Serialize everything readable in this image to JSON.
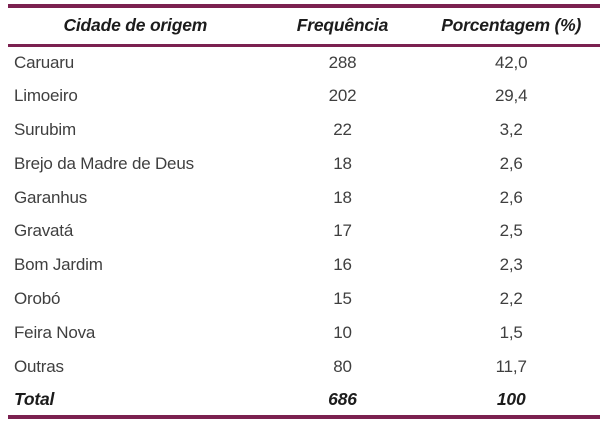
{
  "table": {
    "columns": [
      "Cidade de origem",
      "Frequência",
      "Porcentagem (%)"
    ],
    "rows": [
      [
        "Caruaru",
        "288",
        "42,0"
      ],
      [
        "Limoeiro",
        "202",
        "29,4"
      ],
      [
        "Surubim",
        "22",
        "3,2"
      ],
      [
        "Brejo da Madre de Deus",
        "18",
        "2,6"
      ],
      [
        "Garanhus",
        "18",
        "2,6"
      ],
      [
        "Gravatá",
        "17",
        "2,5"
      ],
      [
        "Bom Jardim",
        "16",
        "2,3"
      ],
      [
        "Orobó",
        "15",
        "2,2"
      ],
      [
        "Feira Nova",
        "10",
        "1,5"
      ],
      [
        "Outras",
        "80",
        "11,7"
      ]
    ],
    "total": {
      "label": "Total",
      "frequency": "686",
      "percentage": "100"
    }
  },
  "colors": {
    "border": "#7b2150",
    "header_text": "#1c1c1c",
    "body_text": "#3f3f3f",
    "background": "#ffffff"
  },
  "chart_data": {
    "type": "table",
    "title": "",
    "columns": [
      "Cidade de origem",
      "Frequência",
      "Porcentagem (%)"
    ],
    "rows": [
      [
        "Caruaru",
        288,
        42.0
      ],
      [
        "Limoeiro",
        202,
        29.4
      ],
      [
        "Surubim",
        22,
        3.2
      ],
      [
        "Brejo da Madre de Deus",
        18,
        2.6
      ],
      [
        "Garanhus",
        18,
        2.6
      ],
      [
        "Gravatá",
        17,
        2.5
      ],
      [
        "Bom Jardim",
        16,
        2.3
      ],
      [
        "Orobó",
        15,
        2.2
      ],
      [
        "Feira Nova",
        10,
        1.5
      ],
      [
        "Outras",
        80,
        11.7
      ]
    ],
    "total": [
      "Total",
      686,
      100
    ],
    "layout": {
      "decimal_separator": ",",
      "header_style": "bold-italic",
      "rule_color": "#7b2150"
    }
  }
}
